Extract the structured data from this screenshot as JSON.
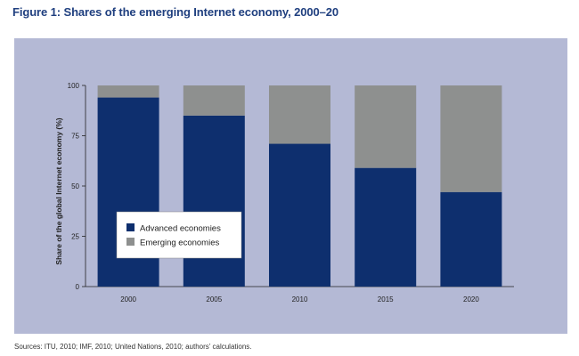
{
  "figure": {
    "title": "Figure 1: Shares of the emerging Internet economy, 2000–20",
    "source": "Sources: ITU, 2010; IMF, 2010; United Nations, 2010; authors’ calculations."
  },
  "colors": {
    "advanced": "#0e2f6e",
    "emerging": "#8e908f",
    "panel": "#b4b9d5",
    "axis": "#222222"
  },
  "chart_data": {
    "type": "bar",
    "stacked": true,
    "categories": [
      "2000",
      "2005",
      "2010",
      "2015",
      "2020"
    ],
    "series": [
      {
        "name": "Advanced economies",
        "values": [
          94,
          85,
          71,
          59,
          47
        ]
      },
      {
        "name": "Emerging economies",
        "values": [
          6,
          15,
          29,
          41,
          53
        ]
      }
    ],
    "ylabel": "Share of the global Internet economy (%)",
    "xlabel": "",
    "ylim": [
      0,
      100
    ],
    "yticks": [
      0,
      25,
      50,
      75,
      100
    ],
    "grid": false,
    "legend_position": "bottom-left"
  }
}
